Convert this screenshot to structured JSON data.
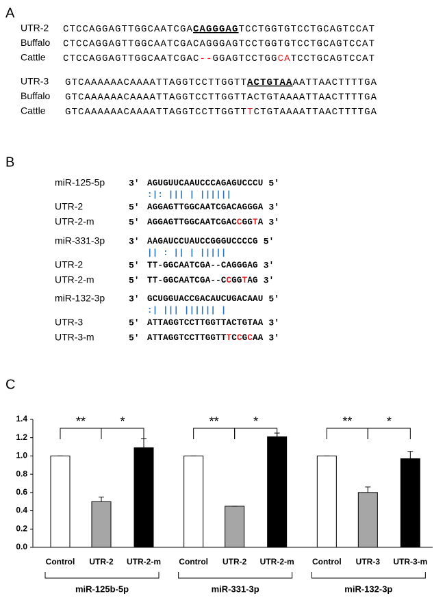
{
  "panel_a": {
    "label": "A",
    "blocks": [
      {
        "rows": [
          {
            "name": "UTR-2",
            "segments": [
              {
                "text": "CTCCAGGAGTTGGCAATCGA"
              },
              {
                "text": "CAGGGAG",
                "style": "underline"
              },
              {
                "text": "TCCTGGTGTCCTGCAGTCCAT"
              }
            ]
          },
          {
            "name": "Buffalo",
            "segments": [
              {
                "text": "CTCCAGGAGTTGGCAATCGACAGGGAGTCCTGGTGTCCTGCAGTCCAT"
              }
            ]
          },
          {
            "name": "Cattle",
            "segments": [
              {
                "text": "CTCCAGGAGTTGGCAATCGAC"
              },
              {
                "text": "--",
                "style": "red"
              },
              {
                "text": "GGAGTCCTGG"
              },
              {
                "text": "CA",
                "style": "red"
              },
              {
                "text": "TCCTGCAGTCCAT"
              }
            ]
          }
        ]
      },
      {
        "rows": [
          {
            "name": "UTR-3",
            "segments": [
              {
                "text": "GTCAAAAAACAAAATTAGGTCCTTGGTT"
              },
              {
                "text": "ACTGTAA",
                "style": "underline"
              },
              {
                "text": "AATTAACTTTTGA"
              }
            ]
          },
          {
            "name": "Buffalo",
            "segments": [
              {
                "text": "GTCAAAAAACAAAATTAGGTCCTTGGTTACTGTAAAATTAACTTTTGA"
              }
            ]
          },
          {
            "name": "Cattle",
            "segments": [
              {
                "text": "GTCAAAAAACAAAATTAGGTCCTTGGTT"
              },
              {
                "text": "T",
                "style": "red"
              },
              {
                "text": "CTGTAAAATTAACTTTTGA"
              }
            ]
          }
        ]
      }
    ]
  },
  "panel_b": {
    "label": "B",
    "blocks": [
      {
        "rows": [
          {
            "name": "miR-125-5p",
            "left": "3′",
            "segments": [
              {
                "text": "AGUGUUCAAUCCCAGAGUCCCU"
              }
            ],
            "right": "5′"
          },
          {
            "segments": [
              {
                "text": "  :|: |||     | ||||||",
                "style": "pair"
              }
            ]
          },
          {
            "name": "UTR-2",
            "left": "5′",
            "segments": [
              {
                "text": "AGGAGTTGGCAATCGACAGGGA"
              }
            ],
            "right": "3′"
          },
          {
            "name": "UTR-2-m",
            "left": "5′",
            "segments": [
              {
                "text": "AGGAGTTGGCAATCGAC"
              },
              {
                "text": "C",
                "style": "red"
              },
              {
                "text": "GG"
              },
              {
                "text": "T",
                "style": "red"
              },
              {
                "text": "A"
              }
            ],
            "right": "3′"
          }
        ]
      },
      {
        "rows": [
          {
            "name": "miR-331-3p",
            "left": "3′",
            "segments": [
              {
                "text": "AAGAUCCUAUCCGGGUCCCCG"
              }
            ],
            "right": "5′"
          },
          {
            "segments": [
              {
                "text": "||    :  ||  |   |||||",
                "style": "pair"
              }
            ]
          },
          {
            "name": "UTR-2",
            "left": "5′",
            "segments": [
              {
                "text": "TT-GGCAATCGA--CAGGGAG"
              }
            ],
            "right": "3′"
          },
          {
            "name": "UTR-2-m",
            "left": "5′",
            "segments": [
              {
                "text": "TT-GGCAATCGA--C"
              },
              {
                "text": "C",
                "style": "red"
              },
              {
                "text": "GG"
              },
              {
                "text": "T",
                "style": "red"
              },
              {
                "text": "AG"
              }
            ],
            "right": "3′"
          }
        ]
      },
      {
        "rows": [
          {
            "name": "miR-132-3p",
            "left": "3′",
            "segments": [
              {
                "text": "GCUGGUACCGACAUCUGACAAU"
              }
            ],
            "right": "5′"
          },
          {
            "segments": [
              {
                "text": "       :|  |||    ||||||  |",
                "style": "pair"
              }
            ]
          },
          {
            "name": "UTR-3",
            "left": "5′",
            "segments": [
              {
                "text": "ATTAGGTCCTTGGTTACTGTAA"
              }
            ],
            "right": "3′"
          },
          {
            "name": "UTR-3-m",
            "left": "5′",
            "segments": [
              {
                "text": "ATTAGGTCCTTGGTT"
              },
              {
                "text": "T",
                "style": "red"
              },
              {
                "text": "C"
              },
              {
                "text": "C",
                "style": "red"
              },
              {
                "text": "G"
              },
              {
                "text": "C",
                "style": "red"
              },
              {
                "text": "AA"
              }
            ],
            "right": "3′"
          }
        ]
      }
    ]
  },
  "chart_data": {
    "type": "bar",
    "label": "C",
    "ylim": [
      0,
      1.4
    ],
    "yticks": [
      {
        "value": 0,
        "label": "0.0"
      },
      0.2,
      0.4,
      0.6,
      0.8,
      {
        "value": 1,
        "label": "1.0"
      },
      1.2,
      1.4
    ],
    "bar_colors": [
      "#ffffff",
      "#a6a6a6",
      "#000000"
    ],
    "groups": [
      {
        "name": "miR-125b-5p",
        "categories": [
          "Control",
          "UTR-2",
          "UTR-2-m"
        ],
        "values": [
          1.0,
          0.5,
          1.09
        ],
        "errors": [
          0,
          0.05,
          0.1
        ],
        "significance": [
          "**",
          "*"
        ]
      },
      {
        "name": "miR-331-3p",
        "categories": [
          "Control",
          "UTR-2",
          "UTR-2-m"
        ],
        "values": [
          1.0,
          0.45,
          1.21
        ],
        "errors": [
          0,
          0,
          0.04
        ],
        "significance": [
          "**",
          "*"
        ]
      },
      {
        "name": "miR-132-3p",
        "categories": [
          "Control",
          "UTR-3",
          "UTR-3-m"
        ],
        "values": [
          1.0,
          0.6,
          0.97
        ],
        "errors": [
          0,
          0.06,
          0.08
        ],
        "significance": [
          "**",
          "*"
        ]
      }
    ]
  }
}
